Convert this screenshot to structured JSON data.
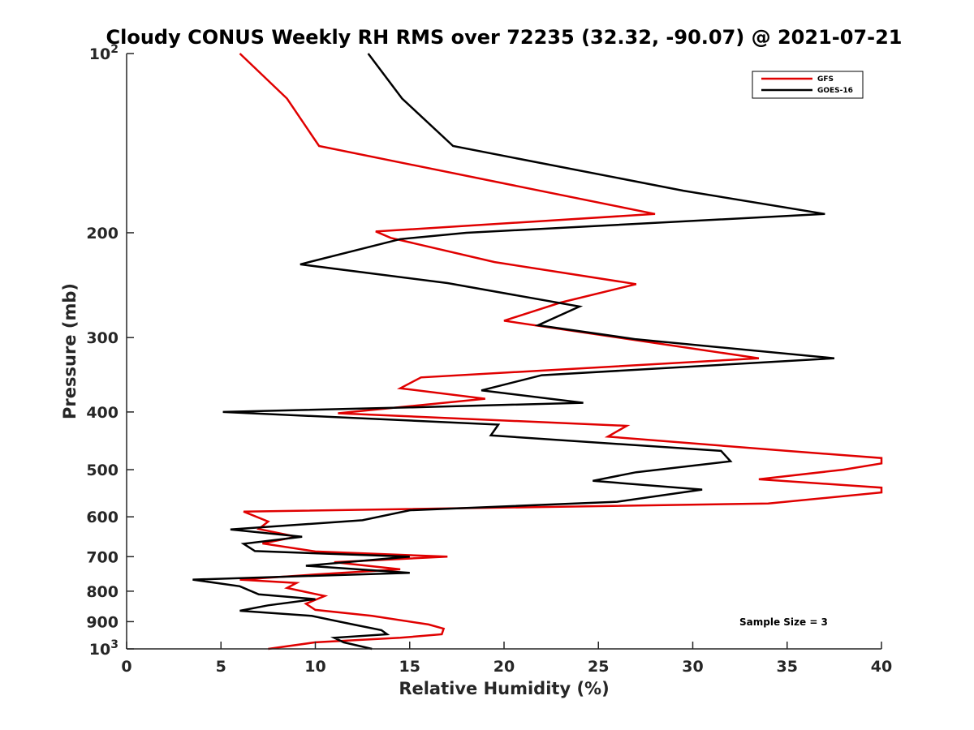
{
  "chart_data": {
    "type": "line",
    "title": "Cloudy CONUS Weekly RH RMS over 72235 (32.32, -90.07) @ 2021-07-21",
    "xlabel": "Relative Humidity (%)",
    "ylabel": "Pressure (mb)",
    "xlim": [
      0,
      40
    ],
    "ylim": [
      100,
      1000
    ],
    "yscale": "log",
    "yreversed": true,
    "grid": false,
    "legend_position": "top-right",
    "note": "Sample Size = 3",
    "xticks": [
      0,
      5,
      10,
      15,
      20,
      25,
      30,
      35,
      40
    ],
    "xtick_labels": [
      "0",
      "5",
      "10",
      "15",
      "20",
      "25",
      "30",
      "35",
      "40"
    ],
    "yticks": [
      {
        "value": 100,
        "label": "10",
        "sup": "2"
      },
      {
        "value": 200,
        "label": "200",
        "sup": ""
      },
      {
        "value": 300,
        "label": "300",
        "sup": ""
      },
      {
        "value": 400,
        "label": "400",
        "sup": ""
      },
      {
        "value": 500,
        "label": "500",
        "sup": ""
      },
      {
        "value": 600,
        "label": "600",
        "sup": ""
      },
      {
        "value": 700,
        "label": "700",
        "sup": ""
      },
      {
        "value": 800,
        "label": "800",
        "sup": ""
      },
      {
        "value": 900,
        "label": "900",
        "sup": ""
      },
      {
        "value": 1000,
        "label": "10",
        "sup": "3"
      }
    ],
    "series": [
      {
        "name": "GFS",
        "color": "#e00000",
        "points": [
          [
            6.0,
            100
          ],
          [
            8.5,
            119
          ],
          [
            10.2,
            143
          ],
          [
            28.0,
            186
          ],
          [
            13.2,
            199
          ],
          [
            14.0,
            204
          ],
          [
            19.5,
            224
          ],
          [
            27.0,
            244
          ],
          [
            23.0,
            262
          ],
          [
            20.0,
            281
          ],
          [
            33.5,
            325
          ],
          [
            15.6,
            350
          ],
          [
            14.5,
            365
          ],
          [
            19.0,
            380
          ],
          [
            11.2,
            402
          ],
          [
            26.5,
            422
          ],
          [
            25.5,
            440
          ],
          [
            35.0,
            465
          ],
          [
            40.0,
            478
          ],
          [
            40.0,
            488
          ],
          [
            38.0,
            500
          ],
          [
            33.5,
            519
          ],
          [
            40.0,
            536
          ],
          [
            40.0,
            546
          ],
          [
            34.0,
            570
          ],
          [
            6.2,
            588
          ],
          [
            7.5,
            611
          ],
          [
            7.0,
            629
          ],
          [
            9.0,
            648
          ],
          [
            7.2,
            665
          ],
          [
            10.0,
            686
          ],
          [
            17.0,
            700
          ],
          [
            11.0,
            715
          ],
          [
            14.5,
            735
          ],
          [
            10.0,
            750
          ],
          [
            6.0,
            765
          ],
          [
            9.0,
            775
          ],
          [
            8.5,
            790
          ],
          [
            10.5,
            815
          ],
          [
            9.5,
            840
          ],
          [
            10.0,
            860
          ],
          [
            13.0,
            880
          ],
          [
            16.0,
            910
          ],
          [
            16.8,
            925
          ],
          [
            16.7,
            945
          ],
          [
            14.5,
            958
          ],
          [
            10.0,
            975
          ],
          [
            7.5,
            1000
          ]
        ]
      },
      {
        "name": "GOES-16",
        "color": "#000000",
        "points": [
          [
            12.8,
            100
          ],
          [
            14.6,
            119
          ],
          [
            17.3,
            143
          ],
          [
            29.5,
            170
          ],
          [
            37.0,
            186
          ],
          [
            18.0,
            200
          ],
          [
            14.5,
            205
          ],
          [
            9.2,
            226
          ],
          [
            17.0,
            243
          ],
          [
            24.0,
            266
          ],
          [
            21.8,
            286
          ],
          [
            27.0,
            302
          ],
          [
            37.5,
            325
          ],
          [
            22.0,
            347
          ],
          [
            18.8,
            368
          ],
          [
            24.2,
            386
          ],
          [
            15.0,
            393
          ],
          [
            5.1,
            400
          ],
          [
            19.7,
            420
          ],
          [
            19.3,
            438
          ],
          [
            31.5,
            465
          ],
          [
            32.0,
            484
          ],
          [
            27.0,
            505
          ],
          [
            24.7,
            522
          ],
          [
            30.5,
            540
          ],
          [
            26.0,
            566
          ],
          [
            15.0,
            585
          ],
          [
            12.5,
            608
          ],
          [
            5.5,
            630
          ],
          [
            9.3,
            648
          ],
          [
            6.2,
            666
          ],
          [
            6.8,
            685
          ],
          [
            15.0,
            700
          ],
          [
            9.5,
            725
          ],
          [
            15.0,
            745
          ],
          [
            3.5,
            765
          ],
          [
            6.0,
            785
          ],
          [
            7.0,
            810
          ],
          [
            10.0,
            825
          ],
          [
            7.5,
            845
          ],
          [
            6.0,
            863
          ],
          [
            9.8,
            880
          ],
          [
            12.0,
            910
          ],
          [
            13.5,
            930
          ],
          [
            13.8,
            945
          ],
          [
            11.0,
            958
          ],
          [
            11.5,
            975
          ],
          [
            13.0,
            1000
          ]
        ]
      }
    ]
  }
}
